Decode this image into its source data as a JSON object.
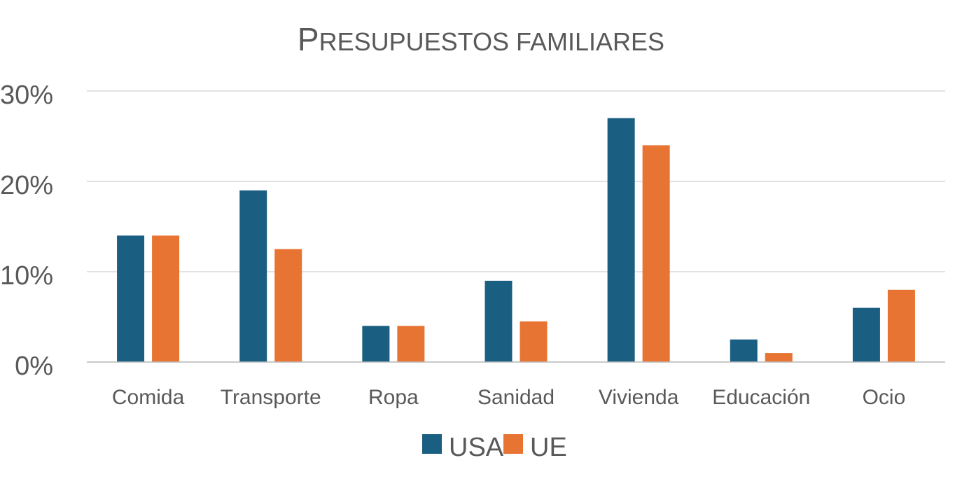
{
  "chart_data": {
    "type": "bar",
    "title": "Presupuestos familiares",
    "categories": [
      "Comida",
      "Transporte",
      "Ropa",
      "Sanidad",
      "Vivienda",
      "Educación",
      "Ocio"
    ],
    "series": [
      {
        "name": "USA",
        "color": "#1a5e82",
        "values": [
          14,
          19,
          4,
          9,
          27,
          2.5,
          6
        ]
      },
      {
        "name": "UE",
        "color": "#e87433",
        "values": [
          14,
          12.5,
          4,
          4.5,
          24,
          1,
          8
        ]
      }
    ],
    "ylim": [
      0,
      30
    ],
    "yticks": [
      "0%",
      "10%",
      "20%",
      "30%"
    ],
    "ytick_values": [
      0,
      10,
      20,
      30
    ],
    "xlabel": "",
    "ylabel": "",
    "grid": true,
    "legend_position": "bottom"
  }
}
